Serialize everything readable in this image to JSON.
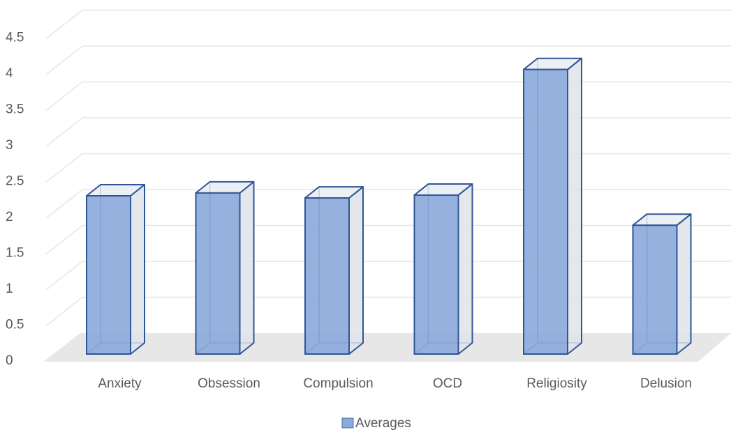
{
  "chart_data": {
    "type": "bar",
    "three_d": true,
    "categories": [
      "Anxiety",
      "Obsession",
      "Compulsion",
      "OCD",
      "Religiosity",
      "Delusion"
    ],
    "series": [
      {
        "name": "Averages",
        "values": [
          2.34,
          2.38,
          2.31,
          2.35,
          4.1,
          1.93
        ]
      }
    ],
    "ylim": [
      0,
      4.5
    ],
    "yticks": [
      "0",
      "0.5",
      "1",
      "1.5",
      "2",
      "2.5",
      "3",
      "3.5",
      "4",
      "4.5"
    ],
    "grid": true,
    "legend": "bottom",
    "colors": {
      "bar_fill": "#8eaadb",
      "bar_stroke": "#2f5597",
      "side_fill": "#dfe4ea",
      "top_fill": "#e9edf2",
      "floor": "#e7e7e7",
      "grid": "#e6e6e6",
      "text": "#595959"
    }
  }
}
